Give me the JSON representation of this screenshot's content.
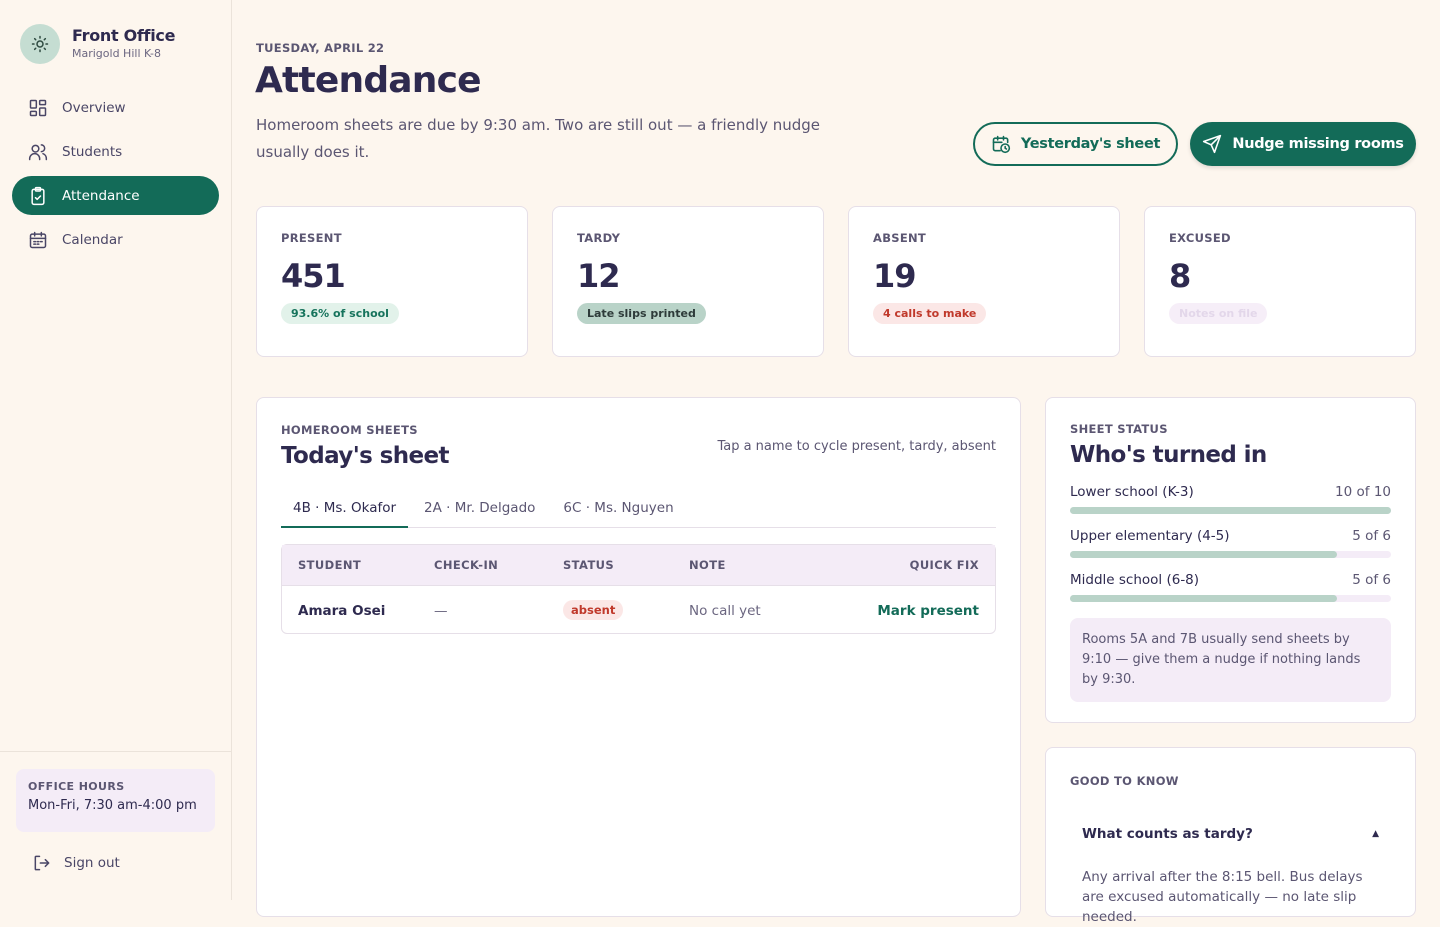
{
  "brand": {
    "title": "Front Office",
    "subtitle": "Marigold Hill K-8"
  },
  "nav": [
    {
      "label": "Overview",
      "icon": "grid-icon"
    },
    {
      "label": "Students",
      "icon": "users-icon"
    },
    {
      "label": "Attendance",
      "icon": "clipboard-check-icon",
      "active": true
    },
    {
      "label": "Calendar",
      "icon": "calendar-icon"
    }
  ],
  "office_hours": {
    "label": "OFFICE HOURS",
    "value": "Mon-Fri, 7:30 am-4:00 pm"
  },
  "signout_label": "Sign out",
  "header": {
    "date": "TUESDAY, APRIL 22",
    "title": "Attendance",
    "subtitle": "Homeroom sheets are due by 9:30 am. Two are still out — a friendly nudge usually does it."
  },
  "actions": {
    "yesterday": "Yesterday's sheet",
    "nudge": "Nudge missing rooms"
  },
  "stats": [
    {
      "label": "PRESENT",
      "value": "451",
      "chip": "93.6% of school"
    },
    {
      "label": "TARDY",
      "value": "12",
      "chip": "Late slips printed"
    },
    {
      "label": "ABSENT",
      "value": "19",
      "chip": "4 calls to make"
    },
    {
      "label": "EXCUSED",
      "value": "8",
      "chip": "Notes on file"
    }
  ],
  "sheet": {
    "eyebrow": "HOMEROOM SHEETS",
    "title": "Today's sheet",
    "hint": "Tap a name to cycle present, tardy, absent",
    "tabs": [
      "4B · Ms. Okafor",
      "2A · Mr. Delgado",
      "6C · Ms. Nguyen"
    ],
    "columns": [
      "STUDENT",
      "CHECK-IN",
      "STATUS",
      "NOTE",
      "QUICK FIX"
    ],
    "rows": [
      {
        "student": "Amara Osei",
        "checkin": "—",
        "status": "absent",
        "note": "No call yet",
        "fix": "Mark present"
      }
    ]
  },
  "status": {
    "eyebrow": "SHEET STATUS",
    "title": "Who's turned in",
    "groups": [
      {
        "label": "Lower school (K-3)",
        "value": "10 of 10",
        "fraction": 1.0
      },
      {
        "label": "Upper elementary (4-5)",
        "value": "5 of 6",
        "fraction": 0.833
      },
      {
        "label": "Middle school (6-8)",
        "value": "5 of 6",
        "fraction": 0.833
      }
    ],
    "note": "Rooms 5A and 7B usually send sheets by 9:10 — give them a nudge if nothing lands by 9:30."
  },
  "faq": {
    "eyebrow": "GOOD TO KNOW",
    "question": "What counts as tardy?",
    "caret": "▲",
    "answer": "Any arrival after the 8:15 bell. Bus delays are excused automatically — no late slip needed."
  },
  "colors": {
    "accent": "#136b58",
    "background": "#fdf6ee",
    "ink": "#2e2a4f",
    "danger": "#c0392b"
  }
}
